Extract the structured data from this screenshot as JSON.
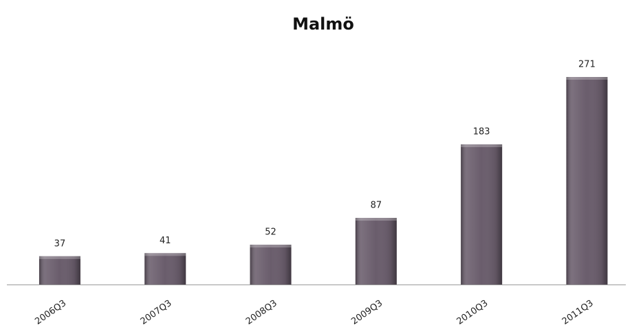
{
  "chart_data": {
    "type": "bar",
    "title": "Malmö",
    "categories": [
      "2006Q3",
      "2007Q3",
      "2008Q3",
      "2009Q3",
      "2010Q3",
      "2011Q3"
    ],
    "values": [
      37,
      41,
      52,
      87,
      183,
      271
    ],
    "color": "#6a5d6c",
    "grid": false
  }
}
